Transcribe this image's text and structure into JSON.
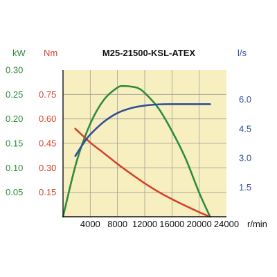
{
  "chart_data": {
    "type": "line",
    "title": "M25-21500-KSL-ATEX",
    "grid": true,
    "colors": {
      "power": "#2e8b3e",
      "torque": "#d4432b",
      "flow": "#2f4f9a",
      "plot_bg": "#f7efc0",
      "grid": "#a09f93",
      "axis": "#111111"
    },
    "x_axis": {
      "unit": "r/min",
      "range": [
        0,
        24000
      ],
      "ticks": [
        4000,
        8000,
        12000,
        16000,
        20000,
        24000
      ],
      "tick_labels": [
        "4000",
        "8000",
        "12000",
        "16000",
        "20000",
        "24000"
      ]
    },
    "axes": {
      "power": {
        "unit": "kW",
        "range": [
          0,
          0.3
        ],
        "ticks": [
          0.05,
          0.1,
          0.15,
          0.2,
          0.25,
          0.3
        ],
        "tick_labels": [
          "0.05",
          "0.10",
          "0.15",
          "0.20",
          "0.25",
          "0.30"
        ]
      },
      "torque": {
        "unit": "Nm",
        "range": [
          0,
          0.9
        ],
        "ticks": [
          0.15,
          0.3,
          0.45,
          0.6,
          0.75
        ],
        "tick_labels": [
          "0.15",
          "0.30",
          "0.45",
          "0.60",
          "0.75"
        ]
      },
      "flow": {
        "unit": "l/s",
        "range": [
          0,
          7.5
        ],
        "ticks": [
          1.5,
          3.0,
          4.5,
          6.0
        ],
        "tick_labels": [
          "1.5",
          "3.0",
          "4.5",
          "6.0"
        ]
      }
    },
    "series": [
      {
        "key": "power",
        "axis": "power",
        "x": [
          0,
          2000,
          4000,
          6000,
          8000,
          9000,
          10000,
          11000,
          12000,
          14000,
          16000,
          18000,
          20000,
          21600
        ],
        "y": [
          0,
          0.113,
          0.19,
          0.239,
          0.264,
          0.267,
          0.266,
          0.263,
          0.253,
          0.222,
          0.175,
          0.119,
          0.049,
          0
        ]
      },
      {
        "key": "torque",
        "axis": "torque",
        "x": [
          1800,
          4000,
          6000,
          8000,
          10000,
          12000,
          14000,
          16000,
          18000,
          20000,
          21600
        ],
        "y": [
          0.54,
          0.455,
          0.39,
          0.324,
          0.263,
          0.205,
          0.153,
          0.108,
          0.067,
          0.028,
          0
        ]
      },
      {
        "key": "flow",
        "axis": "flow",
        "x": [
          1800,
          3000,
          4000,
          6000,
          8000,
          10000,
          12000,
          14000,
          16000,
          18000,
          21600
        ],
        "y": [
          3.1,
          3.75,
          4.2,
          4.85,
          5.3,
          5.55,
          5.68,
          5.74,
          5.75,
          5.75,
          5.75
        ]
      }
    ]
  }
}
